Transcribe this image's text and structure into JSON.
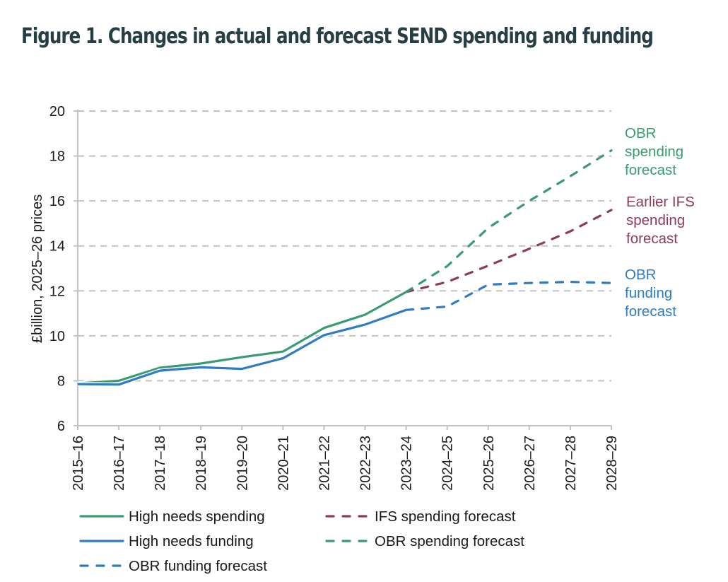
{
  "title": "Figure 1. Changes in actual and forecast SEND spending and funding",
  "chart_data": {
    "type": "line",
    "title": "Figure 1. Changes in actual and forecast SEND spending and funding",
    "xlabel": "",
    "ylabel": "£billion, 2025–26 prices",
    "ylim": [
      6,
      20
    ],
    "yticks": [
      6,
      8,
      10,
      12,
      14,
      16,
      18,
      20
    ],
    "grid": true,
    "categories": [
      "2015–16",
      "2016–17",
      "2017–18",
      "2018–19",
      "2019–20",
      "2020–21",
      "2021–22",
      "2022–23",
      "2023–24",
      "2024–25",
      "2025–26",
      "2026–27",
      "2027–28",
      "2028–29"
    ],
    "series": [
      {
        "name": "High needs spending",
        "style": "solid",
        "color": "#3a9b72",
        "values": [
          7.88,
          8.0,
          8.58,
          8.77,
          9.05,
          9.3,
          10.35,
          10.94,
          11.95,
          null,
          null,
          null,
          null,
          null
        ]
      },
      {
        "name": "High needs funding",
        "style": "solid",
        "color": "#2f7bc4",
        "values": [
          7.85,
          7.83,
          8.45,
          8.6,
          8.53,
          9.0,
          10.03,
          10.5,
          11.15,
          null,
          null,
          null,
          null,
          null
        ]
      },
      {
        "name": "OBR funding forecast",
        "style": "dashed",
        "color": "#2f7bc4",
        "values": [
          null,
          null,
          null,
          null,
          null,
          null,
          null,
          null,
          11.15,
          11.3,
          12.28,
          12.35,
          12.4,
          12.35
        ]
      },
      {
        "name": "IFS spending forecast",
        "style": "dashed",
        "color": "#8e3a5e",
        "values": [
          null,
          null,
          null,
          null,
          null,
          null,
          null,
          null,
          11.95,
          12.4,
          13.12,
          13.87,
          14.65,
          15.6
        ]
      },
      {
        "name": "OBR spending forecast",
        "style": "dashed",
        "color": "#3a9b72",
        "values": [
          null,
          null,
          null,
          null,
          null,
          null,
          null,
          null,
          11.95,
          13.1,
          14.8,
          16.0,
          17.1,
          18.25
        ]
      }
    ],
    "annotations": [
      {
        "lines": [
          "OBR",
          "spending",
          "forecast"
        ],
        "color": "#3a9b72"
      },
      {
        "lines": [
          "Earlier IFS",
          "spending",
          "forecast"
        ],
        "color": "#8e3a5e"
      },
      {
        "lines": [
          "OBR",
          "funding",
          "forecast"
        ],
        "color": "#2f7bc4"
      }
    ],
    "legend": {
      "placement": "bottom",
      "entries": [
        {
          "label": "High needs spending",
          "style": "solid",
          "color": "#3a9b72"
        },
        {
          "label": "IFS spending forecast",
          "style": "dashed",
          "color": "#8e3a5e"
        },
        {
          "label": "High needs funding",
          "style": "solid",
          "color": "#2f7bc4"
        },
        {
          "label": "OBR spending forecast",
          "style": "dashed",
          "color": "#3a9b72"
        },
        {
          "label": "OBR funding forecast",
          "style": "dashed",
          "color": "#2f7bc4"
        }
      ]
    }
  }
}
